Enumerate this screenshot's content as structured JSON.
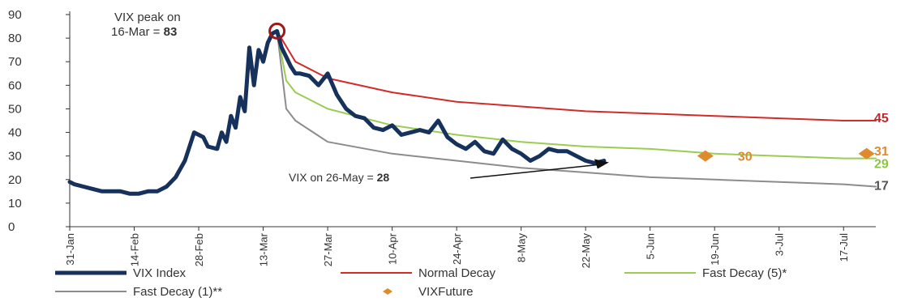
{
  "chart_data": {
    "type": "line",
    "title": "",
    "xlabel": "",
    "ylabel": "",
    "ylim": [
      0,
      90
    ],
    "yticks": [
      0,
      10,
      20,
      30,
      40,
      50,
      60,
      70,
      80,
      90
    ],
    "xlim": [
      "31-Jan",
      "24-Jul"
    ],
    "xticks": [
      "31-Jan",
      "14-Feb",
      "28-Feb",
      "13-Mar",
      "27-Mar",
      "10-Apr",
      "24-Apr",
      "8-May",
      "22-May",
      "5-Jun",
      "19-Jun",
      "3-Jul",
      "17-Jul"
    ],
    "grid": false,
    "legend_position": "bottom",
    "series": [
      {
        "name": "VIX Index",
        "color": "#16325c",
        "x": [
          "31-Jan",
          "1-Feb",
          "3-Feb",
          "5-Feb",
          "7-Feb",
          "9-Feb",
          "11-Feb",
          "13-Feb",
          "15-Feb",
          "17-Feb",
          "19-Feb",
          "21-Feb",
          "23-Feb",
          "25-Feb",
          "27-Feb",
          "29-Feb",
          "1-Mar",
          "3-Mar",
          "4-Mar",
          "5-Mar",
          "6-Mar",
          "7-Mar",
          "8-Mar",
          "9-Mar",
          "10-Mar",
          "11-Mar",
          "12-Mar",
          "13-Mar",
          "14-Mar",
          "15-Mar",
          "16-Mar",
          "17-Mar",
          "18-Mar",
          "19-Mar",
          "20-Mar",
          "21-Mar",
          "23-Mar",
          "25-Mar",
          "27-Mar",
          "29-Mar",
          "31-Mar",
          "2-Apr",
          "4-Apr",
          "6-Apr",
          "8-Apr",
          "10-Apr",
          "12-Apr",
          "14-Apr",
          "16-Apr",
          "18-Apr",
          "20-Apr",
          "22-Apr",
          "24-Apr",
          "26-Apr",
          "28-Apr",
          "30-Apr",
          "2-May",
          "4-May",
          "6-May",
          "8-May",
          "10-May",
          "12-May",
          "14-May",
          "16-May",
          "18-May",
          "20-May",
          "22-May",
          "24-May",
          "26-May"
        ],
        "values": [
          19,
          18,
          17,
          16,
          15,
          15,
          15,
          14,
          14,
          15,
          15,
          17,
          21,
          28,
          40,
          38,
          34,
          33,
          40,
          36,
          47,
          42,
          55,
          49,
          76,
          60,
          75,
          70,
          78,
          82,
          83,
          76,
          72,
          68,
          65,
          65,
          64,
          60,
          65,
          56,
          50,
          47,
          46,
          42,
          41,
          43,
          39,
          40,
          41,
          40,
          45,
          38,
          35,
          33,
          36,
          32,
          31,
          37,
          33,
          31,
          28,
          30,
          33,
          32,
          32,
          30,
          28,
          27,
          28
        ]
      },
      {
        "name": "Normal Decay",
        "color": "#d42a2a",
        "x": [
          "16-Mar",
          "20-Mar",
          "27-Mar",
          "10-Apr",
          "24-Apr",
          "8-May",
          "22-May",
          "5-Jun",
          "19-Jun",
          "3-Jul",
          "17-Jul",
          "24-Jul"
        ],
        "values": [
          83,
          70,
          63,
          57,
          53,
          51,
          49,
          48,
          47,
          46,
          45,
          45
        ]
      },
      {
        "name": "Fast Decay (5)*",
        "color": "#9acd52",
        "x": [
          "16-Mar",
          "18-Mar",
          "20-Mar",
          "27-Mar",
          "10-Apr",
          "24-Apr",
          "8-May",
          "22-May",
          "5-Jun",
          "19-Jun",
          "3-Jul",
          "17-Jul",
          "24-Jul"
        ],
        "values": [
          83,
          62,
          57,
          50,
          43,
          39,
          36,
          34,
          33,
          31,
          30,
          29,
          29
        ]
      },
      {
        "name": "Fast Decay (1)**",
        "color": "#8c8c8c",
        "x": [
          "16-Mar",
          "18-Mar",
          "20-Mar",
          "27-Mar",
          "10-Apr",
          "24-Apr",
          "8-May",
          "22-May",
          "5-Jun",
          "19-Jun",
          "3-Jul",
          "17-Jul",
          "24-Jul"
        ],
        "values": [
          83,
          50,
          45,
          36,
          31,
          28,
          25,
          23,
          21,
          20,
          19,
          18,
          17
        ]
      },
      {
        "name": "VIXFuture",
        "color": "#e08a2e",
        "marker": "diamond",
        "x": [
          "17-Jun",
          "22-Jul"
        ],
        "values": [
          30,
          31
        ]
      }
    ],
    "end_labels": [
      {
        "text": "45",
        "series": "Normal Decay",
        "color": "#c0292b"
      },
      {
        "text": "31",
        "series": "VIXFuture",
        "color": "#e08a2e"
      },
      {
        "text": "29",
        "series": "Fast Decay (5)*",
        "color": "#8cc63f"
      },
      {
        "text": "17",
        "series": "Fast Decay (1)**",
        "color": "#555555"
      }
    ],
    "annotations": [
      {
        "id": "peak",
        "line1": "VIX peak on",
        "line2_prefix": "16-Mar = ",
        "value": "83",
        "x": "16-Mar",
        "y": 83
      },
      {
        "id": "future-label",
        "text": "30",
        "color": "#e08a2e",
        "x": "17-Jun",
        "y": 30
      },
      {
        "id": "last",
        "prefix": "VIX on 26-May = ",
        "value": "28",
        "x": "26-May",
        "y": 28
      }
    ]
  }
}
